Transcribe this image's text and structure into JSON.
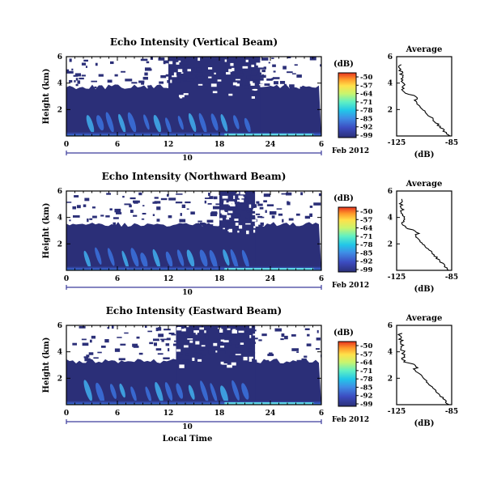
{
  "chart_data": [
    {
      "type": "heatmap",
      "title": "Echo Intensity (Vertical Beam)",
      "ylabel": "Height (km)",
      "y_ticks": [
        "2",
        "4",
        "6"
      ],
      "x_ticks": [
        "0",
        "6",
        "12",
        "18",
        "24",
        "6"
      ],
      "date_label": "10",
      "date_suffix": "Feb 2012",
      "colorbar": {
        "label": "(dB)",
        "ticks": [
          "-50",
          "-57",
          "-64",
          "-71",
          "-78",
          "-85",
          "-92",
          "-99"
        ],
        "range": [
          -99,
          -50
        ]
      },
      "profile": {
        "title": "Average",
        "xlabel": "(dB)",
        "x_ticks": [
          "-125",
          "-85"
        ],
        "y_ticks": [
          "2",
          "4",
          "6"
        ]
      }
    },
    {
      "type": "heatmap",
      "title": "Echo Intensity (Northward Beam)",
      "ylabel": "Height (km)",
      "y_ticks": [
        "2",
        "4",
        "6"
      ],
      "x_ticks": [
        "0",
        "6",
        "12",
        "18",
        "24",
        "6"
      ],
      "date_label": "10",
      "date_suffix": "Feb 2012",
      "colorbar": {
        "label": "(dB)",
        "ticks": [
          "-50",
          "-57",
          "-64",
          "-71",
          "-78",
          "-85",
          "-92",
          "-99"
        ],
        "range": [
          -99,
          -50
        ]
      },
      "profile": {
        "title": "Average",
        "xlabel": "(dB)",
        "x_ticks": [
          "-125",
          "-85"
        ],
        "y_ticks": [
          "2",
          "4",
          "6"
        ]
      }
    },
    {
      "type": "heatmap",
      "title": "Echo Intensity (Eastward Beam)",
      "ylabel": "Height (km)",
      "y_ticks": [
        "2",
        "4",
        "6"
      ],
      "x_ticks": [
        "0",
        "6",
        "12",
        "18",
        "24",
        "6"
      ],
      "date_label": "10",
      "date_suffix": "Feb 2012",
      "xlabel": "Local Time",
      "colorbar": {
        "label": "(dB)",
        "ticks": [
          "-50",
          "-57",
          "-64",
          "-71",
          "-78",
          "-85",
          "-92",
          "-99"
        ],
        "range": [
          -99,
          -50
        ]
      },
      "profile": {
        "title": "Average",
        "xlabel": "(dB)",
        "x_ticks": [
          "-125",
          "-85"
        ],
        "y_ticks": [
          "2",
          "4",
          "6"
        ]
      }
    }
  ],
  "colors": {
    "background_echo": "#2b2f78",
    "colormap": [
      "#2b2f78",
      "#3c4cc0",
      "#3f8ee6",
      "#22c7e8",
      "#5ff0c4",
      "#c9f56e",
      "#ffe14a",
      "#ff9a2a",
      "#e8321e"
    ],
    "axis": "#000000",
    "date_bar": "#3c3c9c"
  }
}
